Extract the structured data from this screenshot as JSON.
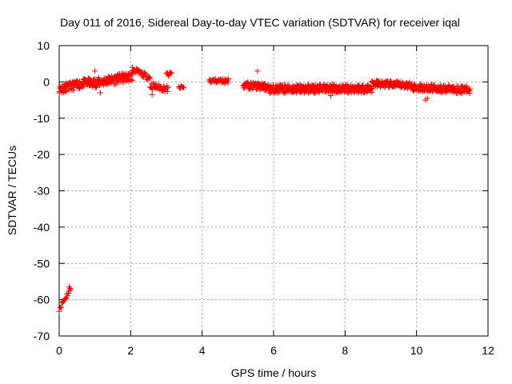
{
  "chart_data": {
    "type": "scatter",
    "title": "Day 011 of 2016, Sidereal Day-to-day VTEC variation (SDTVAR) for receiver iqal",
    "xlabel": "GPS time / hours",
    "ylabel": "SDTVAR / TECUs",
    "xlim": [
      0,
      12
    ],
    "ylim": [
      -70,
      10
    ],
    "xticks": [
      0,
      2,
      4,
      6,
      8,
      10,
      12
    ],
    "yticks": [
      10,
      0,
      -10,
      -20,
      -30,
      -40,
      -50,
      -60,
      -70
    ],
    "grid": true,
    "marker": "+",
    "series_color": "#ff0000",
    "segments": [
      {
        "x_start": 0.0,
        "x_end": 0.32,
        "y_start": -62.5,
        "y_end": -57,
        "noise": 1.2,
        "step": 0.02
      },
      {
        "x_start": 0.0,
        "x_end": 0.85,
        "y_start": -2.0,
        "y_end": 0.0,
        "noise": 2.0,
        "step": 0.01
      },
      {
        "x_start": 0.85,
        "x_end": 2.05,
        "y_start": -0.5,
        "y_end": 1.5,
        "noise": 2.2,
        "step": 0.01
      },
      {
        "x_start": 2.05,
        "x_end": 2.55,
        "y_start": 3.5,
        "y_end": 1.0,
        "noise": 1.2,
        "step": 0.015
      },
      {
        "x_start": 2.55,
        "x_end": 3.05,
        "y_start": -1.0,
        "y_end": -2.0,
        "noise": 1.5,
        "step": 0.015
      },
      {
        "x_start": 3.0,
        "x_end": 3.15,
        "y_start": 2.0,
        "y_end": 2.2,
        "noise": 1.0,
        "step": 0.02
      },
      {
        "x_start": 3.35,
        "x_end": 3.5,
        "y_start": -1.5,
        "y_end": -1.5,
        "noise": 0.8,
        "step": 0.02
      },
      {
        "x_start": 4.2,
        "x_end": 4.75,
        "y_start": 0.3,
        "y_end": 0.3,
        "noise": 1.0,
        "step": 0.015
      },
      {
        "x_start": 5.15,
        "x_end": 5.85,
        "y_start": -0.8,
        "y_end": -1.5,
        "noise": 1.6,
        "step": 0.01
      },
      {
        "x_start": 5.85,
        "x_end": 8.75,
        "y_start": -2.0,
        "y_end": -1.8,
        "noise": 2.0,
        "step": 0.008
      },
      {
        "x_start": 8.75,
        "x_end": 9.9,
        "y_start": -0.5,
        "y_end": -1.0,
        "noise": 1.6,
        "step": 0.01
      },
      {
        "x_start": 9.9,
        "x_end": 11.5,
        "y_start": -1.5,
        "y_end": -2.2,
        "noise": 1.8,
        "step": 0.01
      }
    ],
    "outliers": [
      {
        "x": 0.28,
        "y": -56.5
      },
      {
        "x": 1.0,
        "y": 3.0
      },
      {
        "x": 1.15,
        "y": -3.0
      },
      {
        "x": 2.6,
        "y": -3.5
      },
      {
        "x": 5.55,
        "y": 3.0
      },
      {
        "x": 7.6,
        "y": -3.8
      },
      {
        "x": 10.25,
        "y": -5.0
      },
      {
        "x": 10.3,
        "y": -4.5
      }
    ]
  }
}
